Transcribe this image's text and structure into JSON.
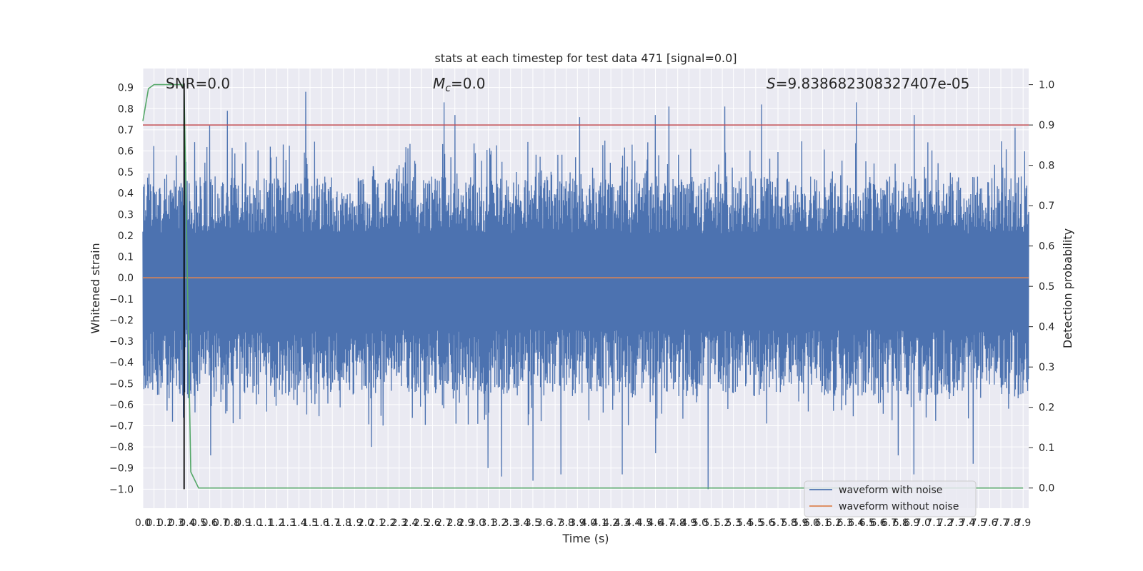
{
  "chart_data": {
    "type": "line",
    "title": "stats at each timestep for test data 471 [signal=0.0]",
    "xlabel": "Time (s)",
    "ylabel": "Whitened strain",
    "y2label": "Detection probability",
    "xlim": [
      0.0,
      7.95
    ],
    "ylim": [
      -1.09,
      0.99
    ],
    "y2lim": [
      -0.05,
      1.04
    ],
    "grid": true,
    "legend_position": "bottom-right",
    "annotations": {
      "snr": "SNR=0.0",
      "mc_symbol": "M",
      "mc_subscript": "c",
      "mc_value": "=0.0",
      "s_symbol": "S",
      "s_value": "=9.838682308327407e-05"
    },
    "x_ticks": [
      "0.0",
      "0.1",
      "0.2",
      "0.3",
      "0.4",
      "0.5",
      "0.6",
      "0.7",
      "0.8",
      "0.9",
      "1.0",
      "1.1",
      "1.2",
      "1.3",
      "1.4",
      "1.5",
      "1.6",
      "1.7",
      "1.8",
      "1.9",
      "2.0",
      "2.1",
      "2.2",
      "2.3",
      "2.4",
      "2.5",
      "2.6",
      "2.7",
      "2.8",
      "2.9",
      "3.0",
      "3.1",
      "3.2",
      "3.3",
      "3.4",
      "3.5",
      "3.6",
      "3.7",
      "3.8",
      "3.9",
      "4.0",
      "4.1",
      "4.2",
      "4.3",
      "4.4",
      "4.5",
      "4.6",
      "4.7",
      "4.8",
      "4.9",
      "5.0",
      "5.1",
      "5.2",
      "5.3",
      "5.4",
      "5.5",
      "5.6",
      "5.7",
      "5.8",
      "5.9",
      "6.0",
      "6.1",
      "6.2",
      "6.3",
      "6.4",
      "6.5",
      "6.6",
      "6.7",
      "6.8",
      "6.9",
      "7.0",
      "7.1",
      "7.2",
      "7.3",
      "7.4",
      "7.5",
      "7.6",
      "7.7",
      "7.8",
      "7.9"
    ],
    "y_ticks": [
      "0.9",
      "0.8",
      "0.7",
      "0.6",
      "0.5",
      "0.4",
      "0.3",
      "0.2",
      "0.1",
      "0.0",
      "−0.1",
      "−0.2",
      "−0.3",
      "−0.4",
      "−0.5",
      "−0.6",
      "−0.7",
      "−0.8",
      "−0.9",
      "−1.0"
    ],
    "y2_ticks": [
      "1.0",
      "0.9",
      "0.8",
      "0.7",
      "0.6",
      "0.5",
      "0.4",
      "0.3",
      "0.2",
      "0.1",
      "0.0"
    ],
    "series": [
      {
        "name": "waveform with noise",
        "axis": "left",
        "color": "#4c72b0",
        "noise_band": [
          -0.35,
          0.3
        ],
        "peaks": [
          {
            "x": 0.38,
            "y": 0.62
          },
          {
            "x": 0.6,
            "y": 0.72
          },
          {
            "x": 0.76,
            "y": 0.79
          },
          {
            "x": 1.46,
            "y": 0.88
          },
          {
            "x": 2.7,
            "y": 0.83
          },
          {
            "x": 2.8,
            "y": 0.77
          },
          {
            "x": 3.92,
            "y": 0.76
          },
          {
            "x": 4.6,
            "y": 0.77
          },
          {
            "x": 4.72,
            "y": 0.81
          },
          {
            "x": 5.22,
            "y": 0.81
          },
          {
            "x": 5.55,
            "y": 0.82
          },
          {
            "x": 6.4,
            "y": 0.83
          },
          {
            "x": 6.92,
            "y": 0.77
          },
          {
            "x": 7.83,
            "y": 0.71
          },
          {
            "x": 0.61,
            "y": -0.84
          },
          {
            "x": 2.05,
            "y": -0.8
          },
          {
            "x": 3.1,
            "y": -0.9
          },
          {
            "x": 3.22,
            "y": -0.94
          },
          {
            "x": 3.5,
            "y": -0.96
          },
          {
            "x": 3.75,
            "y": -0.93
          },
          {
            "x": 4.3,
            "y": -0.93
          },
          {
            "x": 4.6,
            "y": -0.83
          },
          {
            "x": 5.07,
            "y": -1.0
          },
          {
            "x": 6.78,
            "y": -0.84
          },
          {
            "x": 6.92,
            "y": -0.93
          },
          {
            "x": 7.45,
            "y": -0.88
          }
        ]
      },
      {
        "name": "waveform without noise",
        "axis": "left",
        "color": "#dd8452",
        "x": [
          0.0,
          7.95
        ],
        "y": [
          0.0,
          0.0
        ]
      },
      {
        "axis": "right",
        "color": "#55a868",
        "x": [
          0.0,
          0.05,
          0.1,
          0.35,
          0.37,
          0.43,
          0.5,
          0.6,
          7.9
        ],
        "y": [
          0.91,
          0.99,
          1.0,
          1.0,
          0.99,
          0.04,
          0.0,
          0.0,
          0.0
        ]
      },
      {
        "axis": "right",
        "color": "#c44e52",
        "x": [
          0.0,
          7.95
        ],
        "y": [
          0.9,
          0.9
        ]
      },
      {
        "axis": "left",
        "color": "#000000",
        "x": [
          0.37,
          0.37
        ],
        "y": [
          -1.0,
          0.92
        ]
      }
    ]
  }
}
